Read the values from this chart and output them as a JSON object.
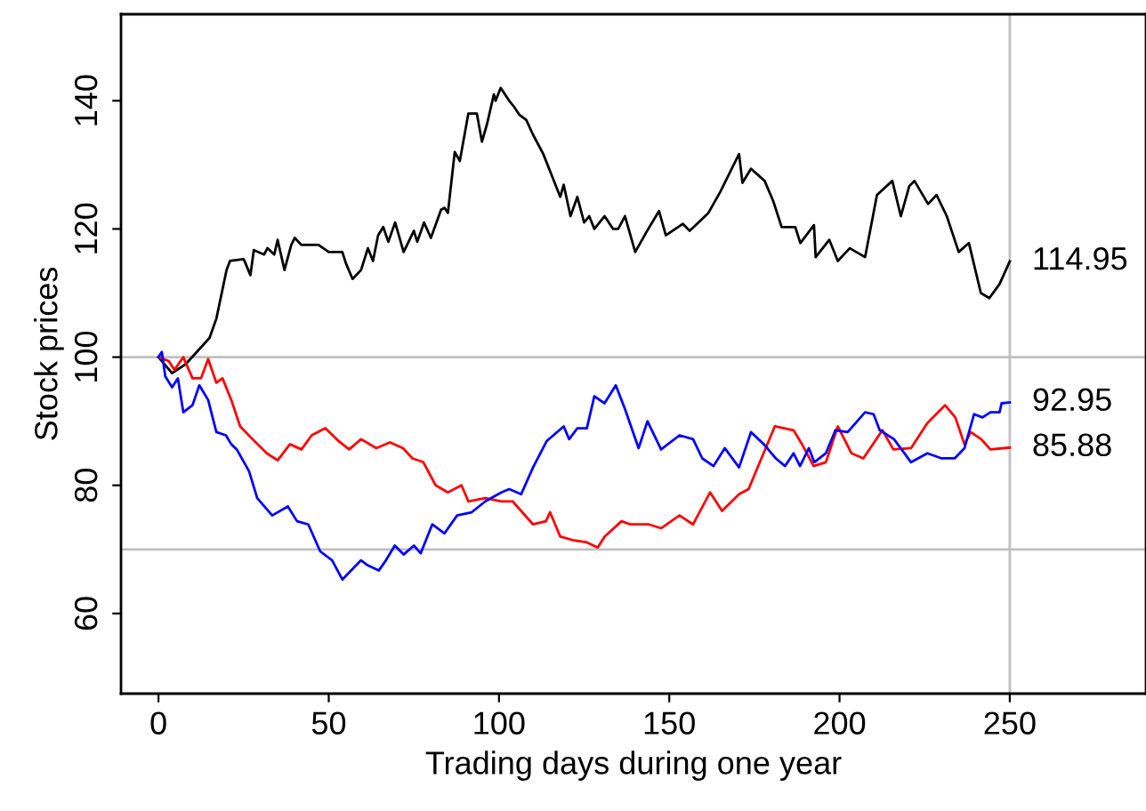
{
  "chart_data": {
    "type": "line",
    "xlabel": "Trading days during one year",
    "ylabel": "Stock prices",
    "xlim": [
      -11,
      290
    ],
    "ylim": [
      47.5,
      153.5
    ],
    "xticks": [
      0,
      50,
      100,
      150,
      200,
      250
    ],
    "yticks": [
      60,
      80,
      100,
      120,
      140
    ],
    "grid": false,
    "legend": false,
    "marker": "none",
    "line_style": "solid",
    "series": [
      {
        "color": "#000000",
        "x": [
          0,
          4,
          8,
          15,
          17,
          20,
          21,
          25,
          25.5,
          27,
          28,
          31,
          32,
          34,
          35,
          37,
          39,
          40,
          42,
          47,
          50,
          54,
          55,
          57,
          59.5,
          61.5,
          63,
          64.5,
          66,
          67.5,
          69.5,
          72,
          75,
          76,
          78,
          80,
          83,
          84,
          85,
          87,
          88.5,
          91,
          93.5,
          95,
          96.5,
          98.5,
          99,
          100.5,
          103,
          104.5,
          106,
          108,
          110,
          113,
          115,
          118,
          119,
          121,
          123,
          125,
          126.5,
          128,
          131,
          133.5,
          135,
          137,
          140,
          143.5,
          147,
          149,
          154,
          156,
          161.5,
          165,
          170.5,
          171.5,
          174,
          178,
          180.5,
          183,
          187,
          188.5,
          192.5,
          193,
          197,
          199.5,
          203,
          207.5,
          211,
          215.5,
          218,
          220.5,
          222,
          226,
          228.5,
          231.5,
          235,
          238,
          241.5,
          244,
          247,
          250
        ],
        "value_labels": [
          null,
          null,
          null,
          null,
          null,
          null,
          null,
          null,
          null,
          null,
          null,
          null,
          null,
          null,
          null,
          null,
          null,
          null,
          null,
          null,
          null,
          null,
          null,
          null,
          null,
          null,
          null,
          null,
          null,
          null,
          null,
          null,
          null,
          null,
          null,
          null,
          null,
          null,
          null,
          null,
          null,
          null,
          null,
          null,
          null,
          null,
          null,
          null,
          null,
          null,
          null,
          null,
          null,
          null,
          null,
          null,
          null,
          null,
          null,
          null,
          null,
          null,
          null,
          null,
          null,
          null,
          null,
          null,
          null,
          null,
          null,
          null,
          null,
          null,
          null,
          null,
          null,
          null,
          null,
          null,
          null,
          null,
          null,
          null,
          null,
          null,
          null,
          null,
          null,
          null,
          null,
          null,
          null,
          null,
          null,
          null,
          null,
          null,
          null,
          null,
          null,
          "114.95"
        ],
        "values": [
          100,
          97.5,
          98.9,
          103,
          106,
          113.6,
          115,
          115.3,
          114.7,
          112.8,
          116.7,
          116,
          117,
          116,
          118.3,
          113.6,
          117.5,
          118.6,
          117.5,
          117.5,
          116.4,
          116.4,
          114.7,
          112.2,
          113.6,
          117,
          115,
          119,
          120.3,
          118,
          121,
          116.4,
          119.7,
          118,
          121,
          118.6,
          123,
          123.3,
          122.5,
          132,
          130.6,
          138,
          138,
          133.6,
          136.4,
          141,
          140,
          142,
          140,
          139,
          137.8,
          137,
          134.7,
          131.7,
          129,
          125,
          126.9,
          122,
          125,
          121,
          122,
          120,
          122,
          120,
          120,
          122,
          116.4,
          119.7,
          122.8,
          119,
          120.8,
          119.7,
          122.5,
          125.8,
          131.7,
          127.2,
          129.4,
          127.5,
          124.4,
          120.3,
          120.3,
          117.8,
          120.6,
          115.6,
          118.3,
          115,
          117,
          115.6,
          125.3,
          127.5,
          122,
          126.7,
          127.5,
          123.9,
          125.3,
          122,
          116.4,
          117.8,
          110,
          109.2,
          111.4,
          114.95
        ]
      },
      {
        "color": "#ff0000",
        "x": [
          0,
          3,
          4.7,
          7.3,
          10,
          12.5,
          14.6,
          17,
          18.8,
          21.4,
          24,
          27.6,
          31.8,
          35,
          38.6,
          42,
          45,
          49,
          52.7,
          56,
          59.5,
          64,
          68,
          71.8,
          74.6,
          77.8,
          81.4,
          85,
          89,
          91,
          96,
          100.7,
          104,
          110,
          113.8,
          115,
          118,
          122,
          125.8,
          129,
          131,
          136,
          138.6,
          144,
          147.6,
          153,
          157,
          162,
          165.5,
          170.5,
          173.3,
          176.6,
          181,
          186.5,
          189,
          192.4,
          196,
          199.5,
          203.5,
          207,
          212.6,
          215.8,
          221,
          225.8,
          231,
          234,
          236.7,
          238.5,
          241.6,
          244.3,
          250
        ],
        "value_labels": [
          null,
          null,
          null,
          null,
          null,
          null,
          null,
          null,
          null,
          null,
          null,
          null,
          null,
          null,
          null,
          null,
          null,
          null,
          null,
          null,
          null,
          null,
          null,
          null,
          null,
          null,
          null,
          null,
          null,
          null,
          null,
          null,
          null,
          null,
          null,
          null,
          null,
          null,
          null,
          null,
          null,
          null,
          null,
          null,
          null,
          null,
          null,
          null,
          null,
          null,
          null,
          null,
          null,
          null,
          null,
          null,
          null,
          null,
          null,
          null,
          null,
          null,
          null,
          null,
          null,
          null,
          null,
          null,
          null,
          null,
          "85.88"
        ],
        "values": [
          100,
          99.4,
          98,
          100,
          96.7,
          96.7,
          99.7,
          96,
          96.7,
          93.3,
          89.2,
          87.2,
          85,
          83.9,
          86.4,
          85.6,
          87.8,
          88.9,
          87,
          85.6,
          87.2,
          85.8,
          86.7,
          85.8,
          84.2,
          83.6,
          80,
          78.9,
          80,
          77.5,
          78,
          77.5,
          77.5,
          73.9,
          74.4,
          75.8,
          72,
          71.4,
          71.1,
          70.3,
          72,
          74.4,
          73.9,
          73.9,
          73.3,
          75.3,
          73.9,
          78.9,
          76,
          78.6,
          79.4,
          83.6,
          89.2,
          88.6,
          86.4,
          83,
          83.6,
          89.2,
          85,
          84.2,
          88.6,
          85.6,
          85.8,
          89.7,
          92.5,
          90.6,
          86.4,
          88.3,
          87.2,
          85.6,
          85.88
        ]
      },
      {
        "color": "#0000ff",
        "x": [
          0,
          1,
          2,
          4,
          5.7,
          7.3,
          10,
          12,
          14.6,
          17,
          19.8,
          21.4,
          23,
          26.6,
          29,
          33.4,
          38,
          40.7,
          44,
          47.5,
          51,
          54,
          56,
          59.5,
          61.5,
          64.7,
          66.8,
          69.4,
          72,
          75,
          77,
          80.4,
          84,
          87.7,
          92,
          96,
          100.7,
          103,
          106.5,
          110,
          114,
          119,
          120.6,
          123,
          125.8,
          128,
          131,
          134.3,
          137,
          141,
          143.6,
          147.6,
          153,
          157,
          159.7,
          163,
          166.3,
          170.5,
          174,
          177.8,
          181.3,
          184,
          186.5,
          188.4,
          191,
          192.6,
          196,
          198.8,
          202.4,
          207.5,
          210,
          211.8,
          216,
          221,
          225.8,
          230,
          233.8,
          236.7,
          239.5,
          242,
          244.3,
          247,
          247.6,
          250
        ],
        "value_labels": [
          null,
          null,
          null,
          null,
          null,
          null,
          null,
          null,
          null,
          null,
          null,
          null,
          null,
          null,
          null,
          null,
          null,
          null,
          null,
          null,
          null,
          null,
          null,
          null,
          null,
          null,
          null,
          null,
          null,
          null,
          null,
          null,
          null,
          null,
          null,
          null,
          null,
          null,
          null,
          null,
          null,
          null,
          null,
          null,
          null,
          null,
          null,
          null,
          null,
          null,
          null,
          null,
          null,
          null,
          null,
          null,
          null,
          null,
          null,
          null,
          null,
          null,
          null,
          null,
          null,
          null,
          null,
          null,
          null,
          null,
          null,
          null,
          null,
          null,
          null,
          null,
          null,
          null,
          null,
          null,
          null,
          null,
          null,
          "92.95"
        ],
        "values": [
          100,
          100.8,
          97,
          95.3,
          96.7,
          91.4,
          92.5,
          95.6,
          93.3,
          88.3,
          87.8,
          86.4,
          85.6,
          82.2,
          78,
          75.3,
          76.7,
          74.4,
          73.9,
          69.7,
          68.3,
          65.3,
          66.4,
          68.3,
          67.5,
          66.7,
          68.3,
          70.6,
          69.2,
          70.6,
          69.4,
          73.9,
          72.5,
          75.3,
          75.8,
          77.5,
          78.9,
          79.4,
          78.6,
          82.8,
          86.9,
          89.2,
          87.2,
          88.9,
          88.9,
          93.9,
          92.8,
          95.6,
          91.9,
          85.8,
          90,
          85.6,
          87.8,
          87.2,
          84.2,
          83,
          85.8,
          82.8,
          88.3,
          86.4,
          84.2,
          83,
          85,
          83,
          85.8,
          83.6,
          85,
          88.6,
          88.3,
          91.4,
          91.1,
          88.6,
          87.2,
          83.6,
          85,
          84.2,
          84.2,
          85.8,
          91.1,
          90.6,
          91.4,
          91.4,
          92.8,
          92.95
        ]
      }
    ],
    "ref_lines": [
      {
        "axis": "y",
        "value": 100,
        "color": "#c0c0c0"
      },
      {
        "axis": "y",
        "value": 70,
        "color": "#c0c0c0"
      },
      {
        "axis": "x",
        "value": 250,
        "color": "#c0c0c0"
      }
    ]
  }
}
